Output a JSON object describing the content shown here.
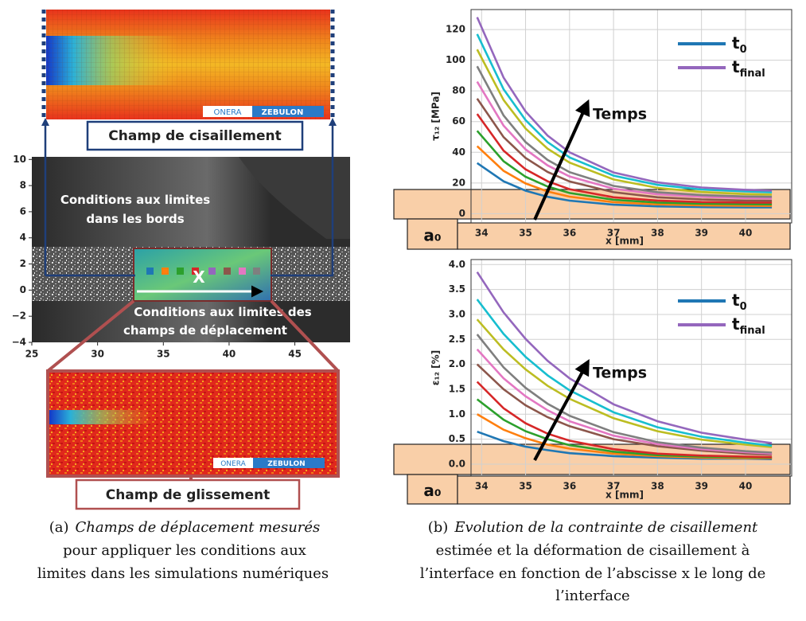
{
  "left_panel": {
    "top_label": "Champ de cisaillement",
    "annotation_edges": [
      "Conditions aux limites",
      "dans les bords"
    ],
    "annotation_displacement": [
      "Conditions aux limites des",
      "champs de déplacement"
    ],
    "bottom_label": "Champ de glissement",
    "logo_left": "ONERA",
    "logo_right": "ZEBULON",
    "marker": "X"
  },
  "captions": [
    {
      "label": "(a)",
      "lines": [
        "Champs de déplacement mesurés",
        "pour appliquer les conditions aux",
        "limites dans les simulations numériques"
      ]
    },
    {
      "label": "(b)",
      "lines": [
        "Evolution de la contrainte de cisaillement",
        "estimée et la déformation de cisaillement à",
        "l’interface en fonction de l’abscisse x le long de",
        "l’interface"
      ]
    }
  ],
  "chart_data": [
    {
      "type": "image",
      "xlim": [
        25,
        49.2
      ],
      "ylim": [
        -4,
        10.2
      ],
      "xticks": [
        25,
        30,
        35,
        40,
        45
      ],
      "yticks": [
        {
          "value": -4,
          "label": "−4"
        },
        {
          "value": -2,
          "label": "−2"
        },
        0,
        2,
        4,
        6,
        8,
        10
      ]
    },
    {
      "type": "line",
      "ylabel": "τ₁₂ [MPa]",
      "xlabel": "x [mm]",
      "annotation": "Temps",
      "marker_label": "a₀",
      "x": [
        33.9,
        34.5,
        35,
        35.5,
        36,
        37,
        38,
        39,
        40,
        40.6
      ],
      "xlim": [
        33.76,
        41.05
      ],
      "ylim": [
        -6,
        133
      ],
      "xticks": [
        34,
        35,
        36,
        37,
        38,
        39,
        40
      ],
      "yticks": [
        0,
        20,
        40,
        60,
        80,
        100,
        120
      ],
      "grid": true,
      "legend": "upper right",
      "series": [
        {
          "name": "t0",
          "color": "#1f77b4",
          "values": [
            33,
            21.1,
            15.0,
            11.0,
            8.5,
            5.9,
            4.8,
            4.3,
            4.1,
            4.1
          ]
        },
        {
          "color": "#ff7f0e",
          "values": [
            44,
            27.9,
            19.7,
            14.5,
            11.1,
            7.5,
            6.1,
            5.4,
            5.2,
            5.1
          ]
        },
        {
          "color": "#2ca02c",
          "values": [
            54,
            34.2,
            24.1,
            17.7,
            13.5,
            9.1,
            7.3,
            6.5,
            6.2,
            6.1
          ]
        },
        {
          "color": "#d62728",
          "values": [
            65,
            41.1,
            28.9,
            21.1,
            16.0,
            10.7,
            8.6,
            7.6,
            7.3,
            7.2
          ]
        },
        {
          "color": "#8c564b",
          "values": [
            75,
            49.9,
            36.3,
            27.2,
            21.0,
            14.0,
            10.7,
            9.3,
            8.6,
            8.4
          ]
        },
        {
          "color": "#e377c2",
          "values": [
            86,
            57.4,
            41.9,
            31.5,
            24.3,
            16.3,
            12.6,
            11.0,
            10.2,
            9.9
          ]
        },
        {
          "color": "#7f7f7f",
          "values": [
            96,
            64.0,
            46.7,
            35.0,
            27.1,
            18.1,
            14.0,
            12.1,
            11.2,
            11.0
          ]
        },
        {
          "color": "#bcbd22",
          "values": [
            107,
            74.1,
            55.5,
            42.4,
            33.3,
            22.3,
            16.8,
            14.1,
            12.8,
            12.4
          ]
        },
        {
          "color": "#17becf",
          "values": [
            117,
            81.1,
            61.0,
            46.7,
            36.7,
            24.8,
            18.8,
            15.8,
            14.5,
            13.9
          ]
        },
        {
          "name": "tfinal",
          "color": "#9467bd",
          "values": [
            128,
            88.7,
            66.6,
            50.9,
            40.0,
            26.9,
            20.4,
            17.1,
            15.6,
            15.0
          ]
        }
      ]
    },
    {
      "type": "line",
      "ylabel": "ε₁₂ [%]",
      "xlabel": "x [mm]",
      "annotation": "Temps",
      "marker_label": "a₀",
      "x": [
        33.9,
        34.5,
        35,
        35.5,
        36,
        37,
        38,
        39,
        40,
        40.6
      ],
      "xlim": [
        33.76,
        41.05
      ],
      "ylim": [
        -0.24,
        4.1
      ],
      "xticks": [
        34,
        35,
        36,
        37,
        38,
        39,
        40
      ],
      "yticks": [
        {
          "value": 0,
          "label": "0.0"
        },
        0.5,
        {
          "value": 1,
          "label": "1.0"
        },
        1.5,
        {
          "value": 2,
          "label": "2.0"
        },
        2.5,
        {
          "value": 3,
          "label": "3.0"
        },
        3.5,
        {
          "value": 4,
          "label": "4.0"
        }
      ],
      "grid": true,
      "legend": "upper right",
      "series": [
        {
          "name": "t0",
          "color": "#1f77b4",
          "values": [
            0.65,
            0.46,
            0.35,
            0.28,
            0.22,
            0.16,
            0.13,
            0.11,
            0.11,
            0.1
          ]
        },
        {
          "color": "#ff7f0e",
          "values": [
            1.0,
            0.69,
            0.52,
            0.39,
            0.31,
            0.21,
            0.16,
            0.13,
            0.12,
            0.12
          ]
        },
        {
          "color": "#2ca02c",
          "values": [
            1.3,
            0.89,
            0.66,
            0.5,
            0.38,
            0.25,
            0.18,
            0.15,
            0.14,
            0.13
          ]
        },
        {
          "color": "#d62728",
          "values": [
            1.65,
            1.12,
            0.82,
            0.61,
            0.47,
            0.3,
            0.21,
            0.17,
            0.15,
            0.14
          ]
        },
        {
          "color": "#8c564b",
          "values": [
            2.0,
            1.5,
            1.18,
            0.94,
            0.76,
            0.5,
            0.36,
            0.27,
            0.21,
            0.19
          ]
        },
        {
          "color": "#e377c2",
          "values": [
            2.3,
            1.72,
            1.36,
            1.08,
            0.86,
            0.57,
            0.4,
            0.3,
            0.24,
            0.21
          ]
        },
        {
          "color": "#7f7f7f",
          "values": [
            2.6,
            1.94,
            1.53,
            1.21,
            0.97,
            0.64,
            0.44,
            0.33,
            0.26,
            0.23
          ]
        },
        {
          "color": "#bcbd22",
          "values": [
            2.9,
            2.3,
            1.9,
            1.57,
            1.31,
            0.92,
            0.66,
            0.49,
            0.39,
            0.34
          ]
        },
        {
          "color": "#17becf",
          "values": [
            3.3,
            2.61,
            2.15,
            1.78,
            1.48,
            1.04,
            0.74,
            0.55,
            0.43,
            0.37
          ]
        },
        {
          "name": "tfinal",
          "color": "#9467bd",
          "values": [
            3.85,
            3.04,
            2.51,
            2.07,
            1.72,
            1.2,
            0.86,
            0.63,
            0.49,
            0.42
          ]
        }
      ]
    }
  ]
}
